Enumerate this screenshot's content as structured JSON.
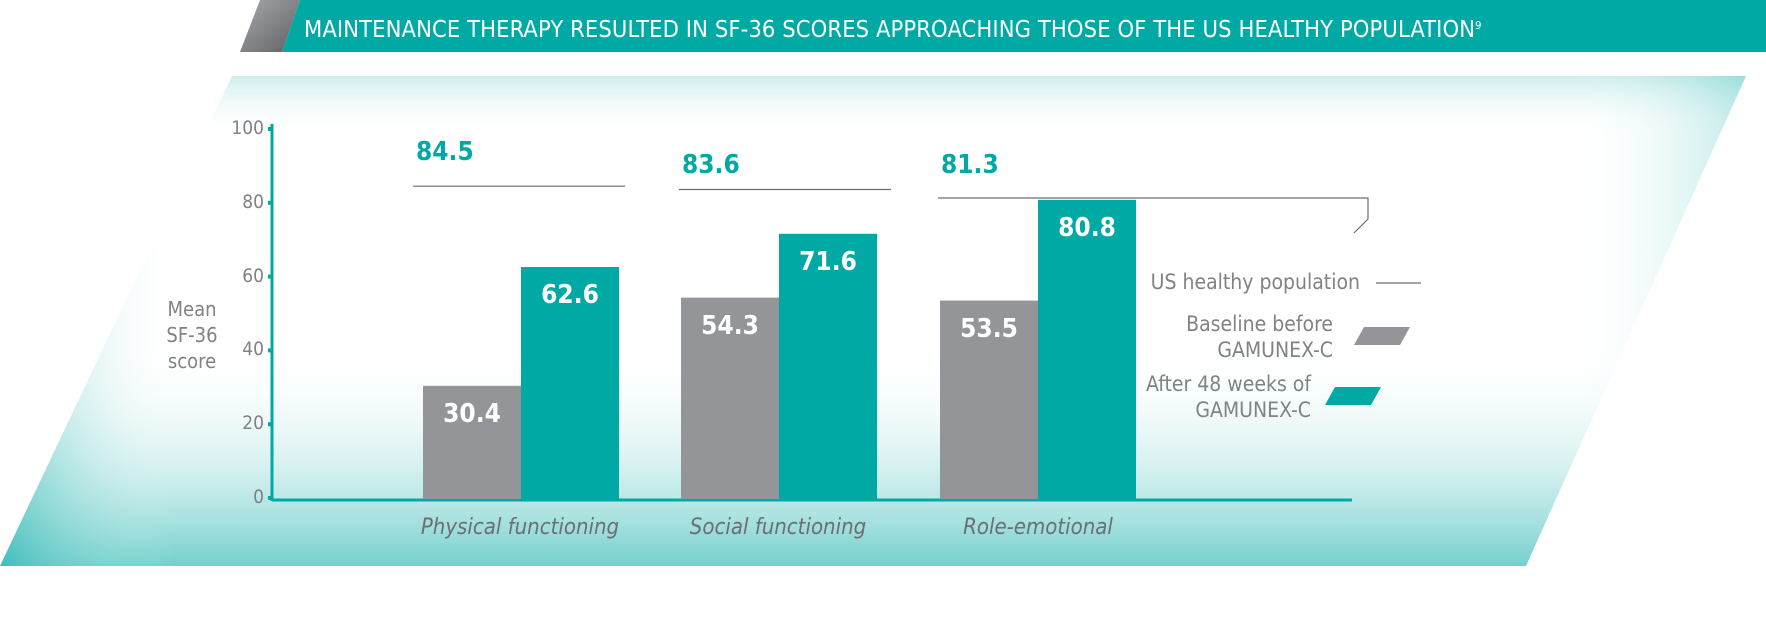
{
  "header": {
    "title": "MAINTENANCE THERAPY RESULTED IN SF-36 SCORES APPROACHING THOSE OF THE US HEALTHY POPULATION",
    "footnote": "9"
  },
  "colors": {
    "teal": "#00a9a4",
    "gray": "#939598",
    "label_gray": "#808285",
    "line_gray": "#6d6e71"
  },
  "chart_data": {
    "type": "bar",
    "ylabel": [
      "Mean",
      "SF-36",
      "score"
    ],
    "ylim": [
      0,
      100
    ],
    "yticks": [
      0,
      20,
      40,
      60,
      80,
      100
    ],
    "categories": [
      "Physical functioning",
      "Social functioning",
      "Role-emotional"
    ],
    "series": [
      {
        "name": "Baseline before GAMUNEX-C",
        "legend_lines": [
          "Baseline before",
          "GAMUNEX-C"
        ],
        "color": "#939598",
        "values": [
          30.4,
          54.3,
          53.5
        ]
      },
      {
        "name": "After 48 weeks of GAMUNEX-C",
        "legend_lines": [
          "After 48 weeks of",
          "GAMUNEX-C"
        ],
        "color": "#00a9a4",
        "values": [
          62.6,
          71.6,
          80.8
        ]
      }
    ],
    "reference": {
      "name": "US healthy population",
      "values": [
        84.5,
        83.6,
        81.3
      ]
    },
    "legend_position": "right"
  }
}
